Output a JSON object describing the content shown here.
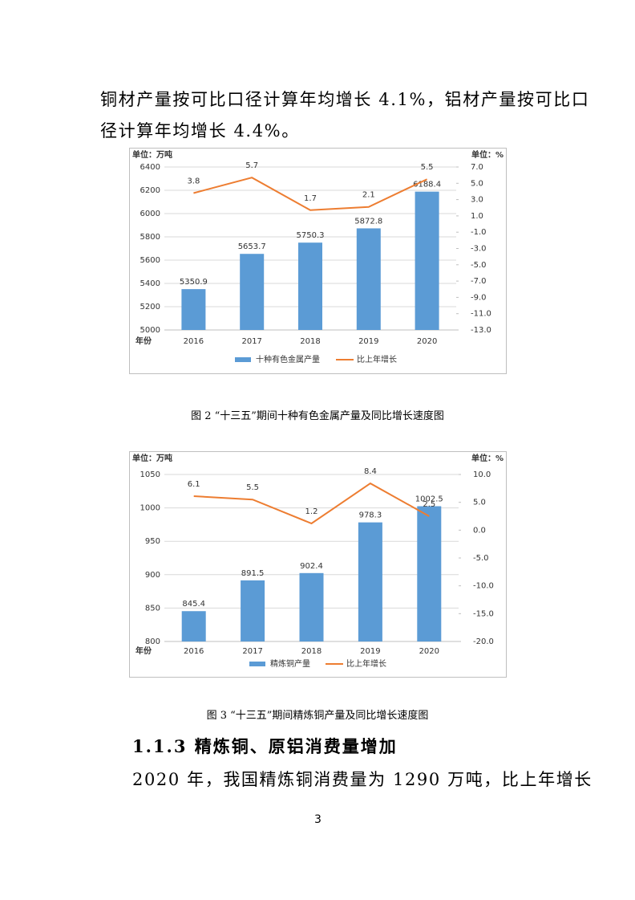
{
  "paragraph_top": {
    "lines": [
      "铜材产量按可比口径计算年均增长 4.1%，铝材产量按可比口",
      "径计算年均增长 4.4%。"
    ]
  },
  "chart_data": [
    {
      "type": "bar",
      "y_label": "单位：万吨",
      "y2_label": "单位：%",
      "x_label": "年份",
      "categories": [
        "2016",
        "2017",
        "2018",
        "2019",
        "2020"
      ],
      "series": [
        {
          "name": "十种有色金属产量",
          "type": "bar",
          "color": "#5b9bd5",
          "values": [
            5350.9,
            5653.7,
            5750.3,
            5872.8,
            6188.4
          ]
        },
        {
          "name": "比上年增长",
          "type": "line",
          "axis": "y2",
          "color": "#ed7d31",
          "values": [
            3.8,
            5.7,
            1.7,
            2.1,
            5.5
          ]
        }
      ],
      "ylim": [
        5000,
        6400
      ],
      "yticks": [
        5000,
        5200,
        5400,
        5600,
        5800,
        6000,
        6200,
        6400
      ],
      "y2lim": [
        -13,
        7
      ],
      "y2ticks": [
        {
          "value": -13,
          "label": "-13.0"
        },
        {
          "value": -11,
          "label": "-11.0"
        },
        {
          "value": -9,
          "label": "-9.0"
        },
        {
          "value": -7,
          "label": "-7.0"
        },
        {
          "value": -5,
          "label": "-5.0"
        },
        {
          "value": -3,
          "label": "-3.0"
        },
        {
          "value": -1,
          "label": "-1.0"
        },
        {
          "value": 1,
          "label": "1.0"
        },
        {
          "value": 3,
          "label": "3.0"
        },
        {
          "value": 5,
          "label": "5.0"
        },
        {
          "value": 7,
          "label": "7.0"
        }
      ],
      "grid": true,
      "legend": "bottom"
    },
    {
      "type": "bar",
      "y_label": "单位：万吨",
      "y2_label": "单位：%",
      "x_label": "年份",
      "categories": [
        "2016",
        "2017",
        "2018",
        "2019",
        "2020"
      ],
      "series": [
        {
          "name": "精炼铜产量",
          "type": "bar",
          "color": "#5b9bd5",
          "values": [
            845.4,
            891.5,
            902.4,
            978.3,
            1002.5
          ]
        },
        {
          "name": "比上年增长",
          "type": "line",
          "axis": "y2",
          "color": "#ed7d31",
          "values": [
            6.1,
            5.5,
            1.2,
            8.4,
            2.5
          ]
        }
      ],
      "ylim": [
        800,
        1050
      ],
      "yticks": [
        800,
        850,
        900,
        950,
        1000,
        1050
      ],
      "y2lim": [
        -20,
        10
      ],
      "y2ticks": [
        {
          "value": -20,
          "label": "-20.0"
        },
        {
          "value": -15,
          "label": "-15.0"
        },
        {
          "value": -10,
          "label": "-10.0"
        },
        {
          "value": -5,
          "label": "-5.0"
        },
        {
          "value": 0,
          "label": "0.0"
        },
        {
          "value": 5,
          "label": "5.0"
        },
        {
          "value": 10,
          "label": "10.0"
        }
      ],
      "grid": true,
      "legend": "bottom"
    }
  ],
  "captions": [
    "图 2 “十三五”期间十种有色金属产量及同比增长速度图",
    "图 3 “十三五”期间精炼铜产量及同比增长速度图"
  ],
  "heading": "1.1.3 精炼铜、原铝消费量增加",
  "paragraph_bottom": "2020 年，我国精炼铜消费量为 1290 万吨，比上年增长",
  "page_number": "3"
}
